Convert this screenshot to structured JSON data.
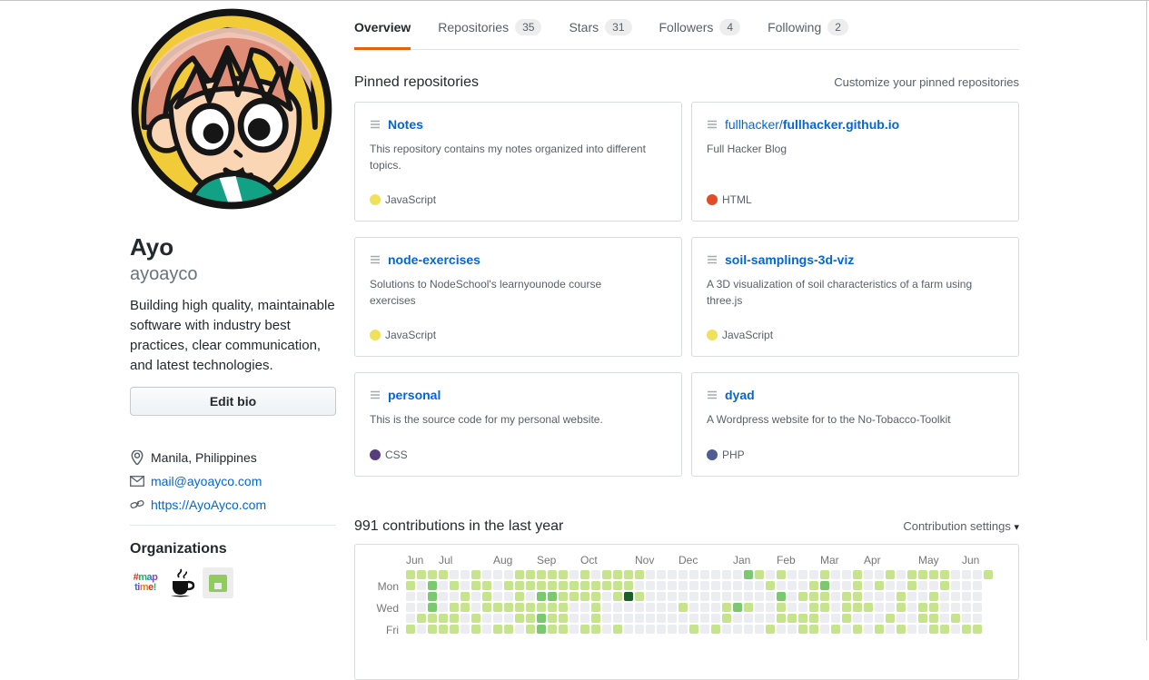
{
  "profile": {
    "name": "Ayo",
    "username": "ayoayco",
    "bio": "Building high quality, maintainable software with industry best practices, clear communication, and latest technologies.",
    "edit_bio_label": "Edit bio",
    "location": "Manila, Philippines",
    "email": "mail@ayoayco.com",
    "website": "https://AyoAyco.com",
    "organizations_title": "Organizations",
    "org_maptime_line1": "#map",
    "org_maptime_line2": "time!"
  },
  "tabs": [
    {
      "label": "Overview",
      "count": "",
      "active": true
    },
    {
      "label": "Repositories",
      "count": "35",
      "active": false
    },
    {
      "label": "Stars",
      "count": "31",
      "active": false
    },
    {
      "label": "Followers",
      "count": "4",
      "active": false
    },
    {
      "label": "Following",
      "count": "2",
      "active": false
    }
  ],
  "pinned": {
    "title": "Pinned repositories",
    "customize_label": "Customize your pinned repositories",
    "repos": [
      {
        "owner": "",
        "name": "Notes",
        "description": "This repository contains my notes organized into different topics.",
        "language": "JavaScript",
        "color": "#f1e05a"
      },
      {
        "owner": "fullhacker/",
        "name": "fullhacker.github.io",
        "description": "Full Hacker Blog",
        "language": "HTML",
        "color": "#e34c26"
      },
      {
        "owner": "",
        "name": "node-exercises",
        "description": "Solutions to NodeSchool's learnyounode course exercises",
        "language": "JavaScript",
        "color": "#f1e05a"
      },
      {
        "owner": "",
        "name": "soil-samplings-3d-viz",
        "description": "A 3D visualization of soil characteristics of a farm using three.js",
        "language": "JavaScript",
        "color": "#f1e05a"
      },
      {
        "owner": "",
        "name": "personal",
        "description": "This is the source code for my personal website.",
        "language": "CSS",
        "color": "#563d7c"
      },
      {
        "owner": "",
        "name": "dyad",
        "description": "A Wordpress website for to the No-Tobacco-Toolkit",
        "language": "PHP",
        "color": "#4F5D95"
      }
    ]
  },
  "contributions": {
    "title": "991 contributions in the last year",
    "settings_label": "Contribution settings"
  },
  "chart_data": {
    "type": "heatmap",
    "title": "991 contributions in the last year",
    "legend_position": "none",
    "cell_size": 10,
    "cell_pitch": 12,
    "level_colors": [
      "#ebedf0",
      "#c6e48b",
      "#7bc96f",
      "#239a3b",
      "#196127"
    ],
    "month_labels": [
      {
        "label": "Jun",
        "col": 0
      },
      {
        "label": "Jul",
        "col": 3
      },
      {
        "label": "Aug",
        "col": 8
      },
      {
        "label": "Sep",
        "col": 12
      },
      {
        "label": "Oct",
        "col": 16
      },
      {
        "label": "Nov",
        "col": 21
      },
      {
        "label": "Dec",
        "col": 25
      },
      {
        "label": "Jan",
        "col": 30
      },
      {
        "label": "Feb",
        "col": 34
      },
      {
        "label": "Mar",
        "col": 38
      },
      {
        "label": "Apr",
        "col": 42
      },
      {
        "label": "May",
        "col": 47
      },
      {
        "label": "Jun",
        "col": 51
      }
    ],
    "day_labels": [
      {
        "label": "Mon",
        "row": 1
      },
      {
        "label": "Wed",
        "row": 3
      },
      {
        "label": "Fri",
        "row": 5
      }
    ],
    "grid_rows_visible": [
      "Sun",
      "Mon",
      "Tue",
      "Wed",
      "Thu",
      "Fri"
    ],
    "grid": [
      "111100100011111010111100000000021010001001001011110001",
      "10201011011111111111100000000000010001200101001001000x",
      "00200101001022111101410000000000002011101100010010000x",
      "00201101111111100100000001000121001001101110010110000x",
      "01111010001121100100000000000100001111001000100110100x",
      "10111010110121101101000000101000010011010101010011011x"
    ]
  }
}
